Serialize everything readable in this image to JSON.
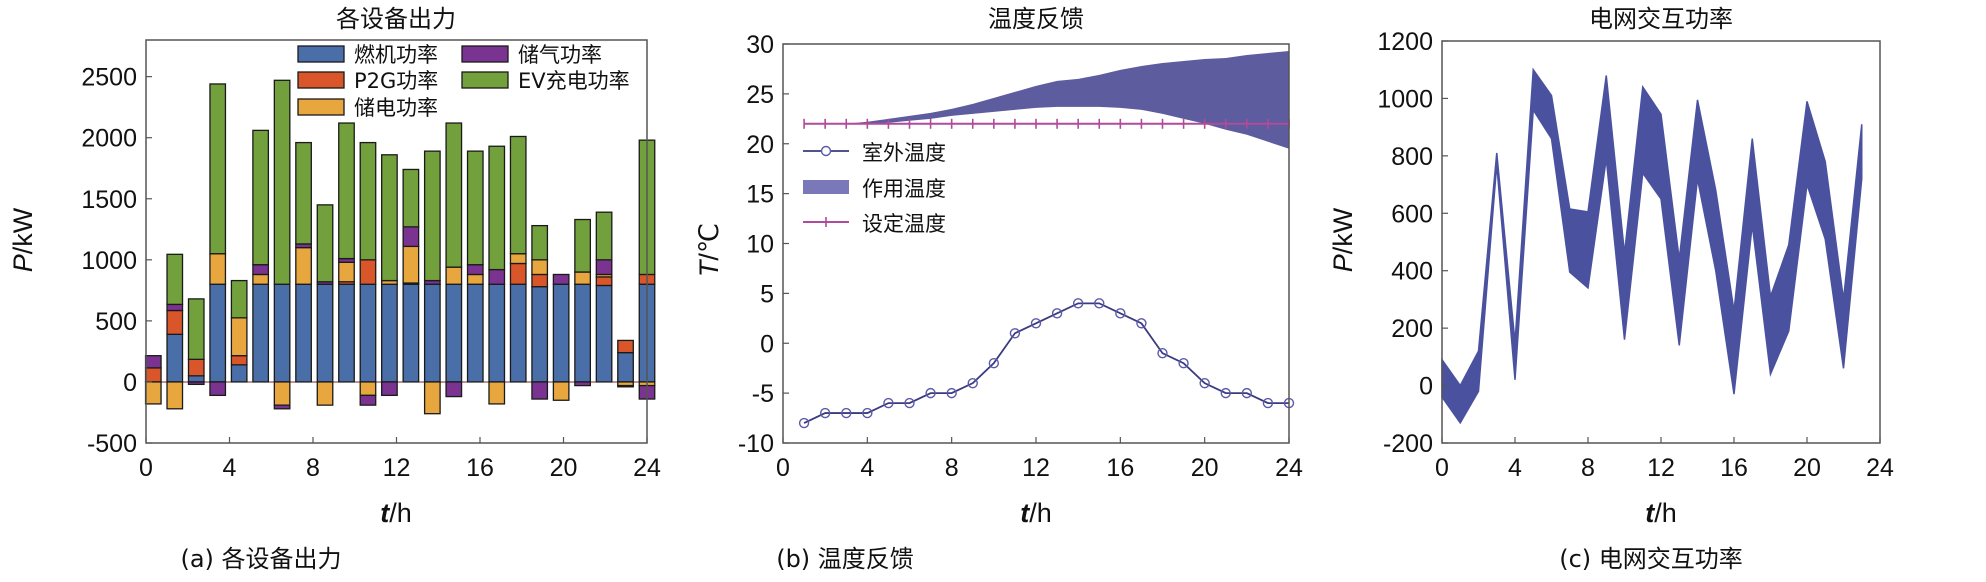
{
  "colors": {
    "gas": "#4a6ea8",
    "p2g": "#d9562a",
    "elec": "#e8a63e",
    "gasstore": "#7b3391",
    "ev": "#72a03c",
    "band": "#5c5c9e",
    "outdoor": "#3a3a80",
    "setpoint": "#b04a9a",
    "grid": "#4a52a0"
  },
  "chart_data": [
    {
      "type": "bar",
      "title": "各设备出力",
      "caption": "(a) 各设备出力",
      "xlabel_var": "t",
      "xlabel_unit": "/h",
      "ylabel_var": "P",
      "ylabel_unit": "/kW",
      "xlim": [
        0,
        24
      ],
      "ylim": [
        -500,
        2800
      ],
      "xticks": [
        "0",
        "4",
        "8",
        "12",
        "16",
        "20",
        "24"
      ],
      "yticks": [
        "-500",
        "0",
        "500",
        "1000",
        "1500",
        "2000",
        "2500"
      ],
      "legend_position": "top-right",
      "categories": [
        1,
        2,
        3,
        4,
        5,
        6,
        7,
        8,
        9,
        10,
        11,
        12,
        13,
        14,
        15,
        16,
        17,
        18,
        19,
        20,
        21,
        22,
        23,
        24
      ],
      "series": [
        {
          "key": "gas",
          "name": "燃机功率",
          "values": [
            0,
            390,
            50,
            800,
            140,
            800,
            800,
            800,
            800,
            800,
            800,
            800,
            800,
            800,
            800,
            800,
            800,
            800,
            780,
            800,
            800,
            790,
            240,
            800
          ]
        },
        {
          "key": "p2g",
          "name": "P2G功率",
          "values": [
            115,
            195,
            135,
            0,
            75,
            0,
            0,
            0,
            0,
            20,
            200,
            0,
            10,
            0,
            0,
            0,
            0,
            170,
            100,
            0,
            0,
            70,
            100,
            80
          ]
        },
        {
          "key": "elec",
          "name": "储电功率",
          "values": [
            0,
            0,
            0,
            250,
            310,
            80,
            0,
            300,
            0,
            160,
            0,
            30,
            300,
            0,
            140,
            80,
            0,
            80,
            120,
            0,
            100,
            20,
            0,
            0
          ],
          "negative": [
            -180,
            -220,
            0,
            0,
            0,
            0,
            -190,
            0,
            -190,
            0,
            -110,
            0,
            0,
            -260,
            0,
            0,
            -180,
            0,
            0,
            -150,
            0,
            0,
            -30,
            -30
          ]
        },
        {
          "key": "gasstore",
          "name": "储气功率",
          "values": [
            100,
            50,
            0,
            0,
            0,
            80,
            0,
            30,
            20,
            30,
            0,
            0,
            160,
            30,
            0,
            80,
            120,
            0,
            0,
            80,
            0,
            120,
            0,
            0
          ],
          "negative": [
            0,
            0,
            -20,
            -110,
            0,
            0,
            -30,
            0,
            0,
            0,
            -80,
            -110,
            0,
            0,
            -120,
            0,
            0,
            0,
            -140,
            0,
            -30,
            0,
            -10,
            -110
          ]
        },
        {
          "key": "ev",
          "name": "EV充电功率",
          "values": [
            0,
            410,
            495,
            1390,
            305,
            1100,
            1670,
            830,
            630,
            1110,
            960,
            1030,
            470,
            1060,
            1180,
            930,
            1010,
            960,
            280,
            0,
            430,
            390,
            0,
            1100
          ]
        }
      ]
    },
    {
      "type": "line",
      "title": "温度反馈",
      "caption": "(b) 温度反馈",
      "xlabel_var": "t",
      "xlabel_unit": "/h",
      "ylabel_var": "T",
      "ylabel_unit": "/℃",
      "xlim": [
        0,
        24
      ],
      "ylim": [
        -10,
        30
      ],
      "xticks": [
        "0",
        "4",
        "8",
        "12",
        "16",
        "20",
        "24"
      ],
      "yticks": [
        "-10",
        "-5",
        "0",
        "5",
        "10",
        "15",
        "20",
        "25",
        "30"
      ],
      "legend_position": "center-left",
      "x": [
        1,
        2,
        3,
        4,
        5,
        6,
        7,
        8,
        9,
        10,
        11,
        12,
        13,
        14,
        15,
        16,
        17,
        18,
        19,
        20,
        21,
        22,
        23,
        24
      ],
      "series": [
        {
          "key": "outdoor",
          "name": "室外温度",
          "values": [
            -8,
            -7,
            -7,
            -7,
            -6,
            -6,
            -5,
            -5,
            -4,
            -2,
            1,
            2,
            3,
            4,
            4,
            3,
            2,
            -1,
            -2,
            -4,
            -5,
            -5,
            -6,
            -6
          ]
        },
        {
          "key": "band",
          "name": "作用温度",
          "upper": [
            22,
            22,
            22,
            22.2,
            22.5,
            22.8,
            23.1,
            23.5,
            24,
            24.6,
            25.2,
            25.8,
            26.3,
            26.5,
            26.9,
            27.4,
            27.8,
            28.1,
            28.3,
            28.5,
            28.6,
            28.9,
            29.1,
            29.3
          ],
          "lower": [
            22,
            22,
            22,
            22,
            22.1,
            22.3,
            22.5,
            22.8,
            23,
            23.2,
            23.4,
            23.6,
            23.7,
            23.7,
            23.7,
            23.6,
            23.4,
            23,
            22.5,
            22,
            21.4,
            20.9,
            20.2,
            19.5
          ]
        },
        {
          "key": "setpoint",
          "name": "设定温度",
          "values": [
            22,
            22,
            22,
            22,
            22,
            22,
            22,
            22,
            22,
            22,
            22,
            22,
            22,
            22,
            22,
            22,
            22,
            22,
            22,
            22,
            22,
            22,
            22,
            22
          ]
        }
      ]
    },
    {
      "type": "area",
      "title": "电网交互功率",
      "caption": "(c) 电网交互功率",
      "xlabel_var": "t",
      "xlabel_unit": "/h",
      "ylabel_var": "P",
      "ylabel_unit": "/kW",
      "xlim": [
        0,
        24
      ],
      "ylim": [
        -200,
        1200
      ],
      "xticks": [
        "0",
        "4",
        "8",
        "12",
        "16",
        "20",
        "24"
      ],
      "yticks": [
        "-200",
        "0",
        "200",
        "400",
        "600",
        "800",
        "1000",
        "1200"
      ],
      "x": [
        0,
        1,
        2,
        3,
        4,
        5,
        6,
        7,
        8,
        9,
        10,
        11,
        12,
        13,
        14,
        15,
        16,
        17,
        18,
        19,
        20,
        21,
        22,
        23
      ],
      "upper": [
        90,
        0,
        120,
        810,
        150,
        1100,
        1010,
        615,
        605,
        1080,
        460,
        1040,
        945,
        440,
        995,
        680,
        260,
        860,
        310,
        490,
        990,
        780,
        300,
        910
      ],
      "lower": [
        -40,
        -130,
        -20,
        770,
        20,
        960,
        860,
        395,
        340,
        790,
        160,
        740,
        650,
        140,
        720,
        400,
        -30,
        560,
        40,
        190,
        700,
        510,
        60,
        720
      ]
    }
  ]
}
